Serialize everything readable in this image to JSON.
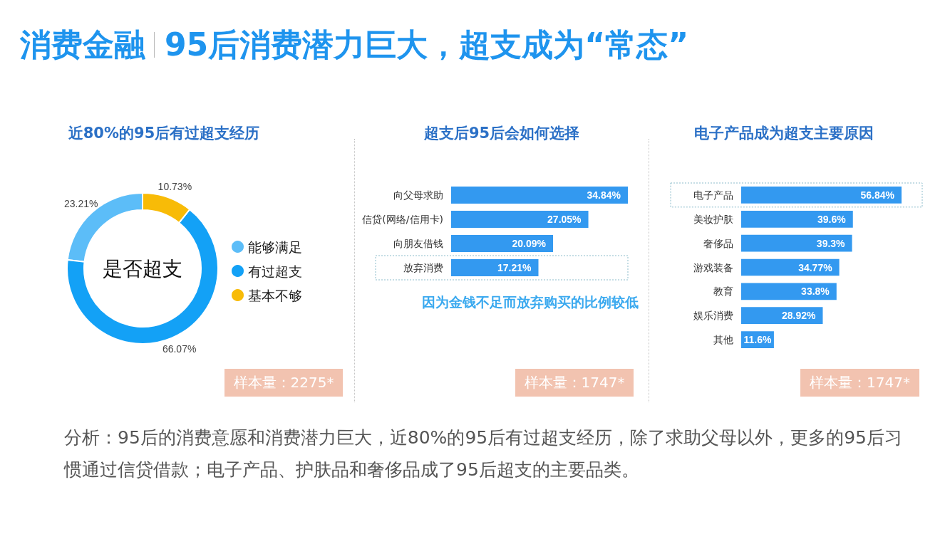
{
  "chart_data": [
    {
      "type": "other",
      "title": "消费金融",
      "subtitle": "95后消费潜力巨大，超支成为“常态”"
    },
    {
      "type": "donut",
      "title": "近80%的95后有过超支经历",
      "categories": [
        "能够满足",
        "有过超支",
        "基本不够"
      ],
      "values": [
        23.21,
        66.07,
        10.73
      ],
      "colors": [
        "#5cbdf8",
        "#13a1f6",
        "#f8bb07"
      ],
      "value_labels": [
        "23.21%",
        "66.07%",
        "10.73%"
      ],
      "legend": "right",
      "annotations": [
        "是否超支",
        "样本量：2275*"
      ]
    },
    {
      "type": "bar",
      "orientation": "horizontal",
      "title": "超支后95后会如何选择",
      "categories": [
        "向父母求助",
        "信贷(网络/信用卡)",
        "向朋友借钱",
        "放弃消费"
      ],
      "values": [
        34.84,
        27.05,
        20.09,
        17.21
      ],
      "color": "#3399f0",
      "value_labels": [
        "34.84%",
        "27.05%",
        "20.09%",
        "17.21%"
      ],
      "tick_labels": "y",
      "annotations": [
        {
          "text": "因为金钱不足而放弃购买的比例较低",
          "y": "放弃消费"
        },
        "样本量：1747*"
      ]
    },
    {
      "type": "bar",
      "orientation": "horizontal",
      "title": "电子产品成为超支主要原因",
      "categories": [
        "电子产品",
        "美妆护肤",
        "奢侈品",
        "游戏装备",
        "教育",
        "娱乐消费",
        "其他"
      ],
      "values": [
        56.84,
        39.6,
        39.3,
        34.77,
        33.8,
        28.92,
        11.6
      ],
      "color": "#3399f0",
      "value_labels": [
        "56.84%",
        "39.6%",
        "39.3%",
        "34.77%",
        "33.8%",
        "28.92%",
        "11.6%"
      ],
      "tick_labels": "y",
      "annotations": [
        "样本量：1747*"
      ]
    },
    {
      "type": "other",
      "annotations": [
        "分析：95后的消费意愿和消费潜力巨大，近80%的95后有过超支经历，除了求助父母以外，更多的95后习惯通过信贷借款；电子产品、护肤品和奢侈品成了95后超支的主要品类。"
      ]
    }
  ]
}
